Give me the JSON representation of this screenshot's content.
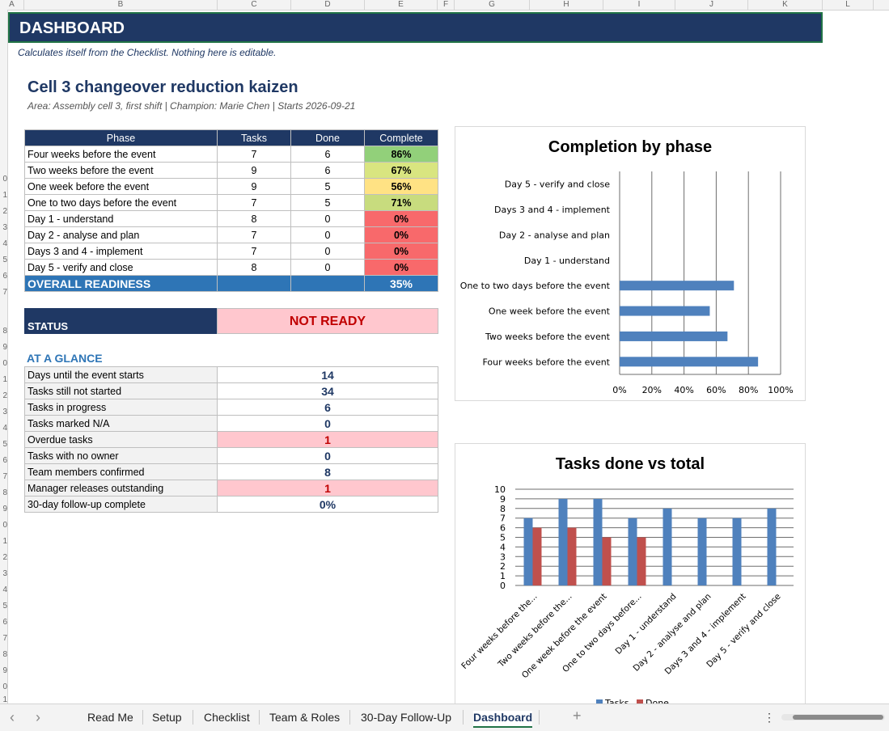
{
  "columns": [
    "A",
    "B",
    "C",
    "D",
    "E",
    "F",
    "G",
    "H",
    "I",
    "J",
    "K",
    "L"
  ],
  "row_numbers": [
    "0",
    "1",
    "2",
    "3",
    "4",
    "5",
    "6",
    "7",
    "",
    "8",
    "9",
    "0",
    "1",
    "2",
    "3",
    "4",
    "5",
    "6",
    "7",
    "8",
    "9",
    "0",
    "1",
    "2",
    "3",
    "4",
    "5",
    "6",
    "7",
    "8",
    "9",
    "0",
    "1"
  ],
  "banner": {
    "title": "DASHBOARD"
  },
  "subtitle": "Calculates itself from the Checklist. Nothing here is editable.",
  "project": {
    "title": "Cell 3 changeover reduction kaizen",
    "meta": "Area: Assembly cell 3, first shift  |  Champion: Marie Chen  |  Starts 2026-09-21"
  },
  "phase_table": {
    "headers": [
      "Phase",
      "Tasks",
      "Done",
      "Complete"
    ],
    "rows": [
      {
        "phase": "Four weeks before the event",
        "tasks": "7",
        "done": "6",
        "complete": "86%",
        "color": "#92d07a"
      },
      {
        "phase": "Two weeks before the event",
        "tasks": "9",
        "done": "6",
        "complete": "67%",
        "color": "#d9e580"
      },
      {
        "phase": "One week before the event",
        "tasks": "9",
        "done": "5",
        "complete": "56%",
        "color": "#ffe284"
      },
      {
        "phase": "One to two days before the event",
        "tasks": "7",
        "done": "5",
        "complete": "71%",
        "color": "#c8dc7e"
      },
      {
        "phase": "Day 1 - understand",
        "tasks": "8",
        "done": "0",
        "complete": "0%",
        "color": "#f8696b"
      },
      {
        "phase": "Day 2 - analyse and plan",
        "tasks": "7",
        "done": "0",
        "complete": "0%",
        "color": "#f8696b"
      },
      {
        "phase": "Days 3 and 4 - implement",
        "tasks": "7",
        "done": "0",
        "complete": "0%",
        "color": "#f8696b"
      },
      {
        "phase": "Day 5 - verify and close",
        "tasks": "8",
        "done": "0",
        "complete": "0%",
        "color": "#f8696b"
      }
    ],
    "overall_label": "OVERALL READINESS",
    "overall_value": "35%"
  },
  "status": {
    "label": "STATUS",
    "value": "NOT READY"
  },
  "glance": {
    "heading": "AT A GLANCE",
    "rows": [
      {
        "label": "Days until the event starts",
        "value": "14",
        "alert": false
      },
      {
        "label": "Tasks still not started",
        "value": "34",
        "alert": false
      },
      {
        "label": "Tasks in progress",
        "value": "6",
        "alert": false
      },
      {
        "label": "Tasks marked N/A",
        "value": "0",
        "alert": false
      },
      {
        "label": "Overdue tasks",
        "value": "1",
        "alert": true
      },
      {
        "label": "Tasks with no owner",
        "value": "0",
        "alert": false
      },
      {
        "label": "Team members confirmed",
        "value": "8",
        "alert": false
      },
      {
        "label": "Manager releases outstanding",
        "value": "1",
        "alert": true
      },
      {
        "label": "30-day follow-up complete",
        "value": "0%",
        "alert": false
      }
    ]
  },
  "chart_data": [
    {
      "type": "bar",
      "orientation": "horizontal",
      "title": "Completion by phase",
      "categories": [
        "Day 5 - verify and close",
        "Days 3 and 4 - implement",
        "Day 2 - analyse and plan",
        "Day 1 - understand",
        "One to two days before the event",
        "One week before the event",
        "Two weeks before the event",
        "Four weeks before the event"
      ],
      "values": [
        0,
        0,
        0,
        0,
        0.71,
        0.56,
        0.67,
        0.86
      ],
      "xlim": [
        0,
        1
      ],
      "ticks": [
        "0%",
        "20%",
        "40%",
        "60%",
        "80%",
        "100%"
      ],
      "grid": true,
      "color": "#4f81bd"
    },
    {
      "type": "bar",
      "title": "Tasks done vs total",
      "categories": [
        "Four weeks before the...",
        "Two weeks before the...",
        "One week before the event",
        "One to two days before...",
        "Day 1 - understand",
        "Day 2 - analyse and plan",
        "Days 3 and 4 - implement",
        "Day 5 - verify and close"
      ],
      "series": [
        {
          "name": "Tasks",
          "values": [
            7,
            9,
            9,
            7,
            8,
            7,
            7,
            8
          ],
          "color": "#4f81bd"
        },
        {
          "name": "Done",
          "values": [
            6,
            6,
            5,
            5,
            0,
            0,
            0,
            0
          ],
          "color": "#c0504d"
        }
      ],
      "ylim": [
        0,
        10
      ],
      "yticks": [
        "0",
        "1",
        "2",
        "3",
        "4",
        "5",
        "6",
        "7",
        "8",
        "9",
        "10"
      ],
      "legend": "bottom",
      "grid": true
    }
  ],
  "tabs": [
    "Read Me",
    "Setup",
    "Checklist",
    "Team & Roles",
    "30-Day Follow-Up",
    "Dashboard"
  ],
  "active_tab": "Dashboard",
  "tabbar_icons": {
    "prev": "‹",
    "next": "›",
    "add": "+",
    "more": "⋮"
  }
}
